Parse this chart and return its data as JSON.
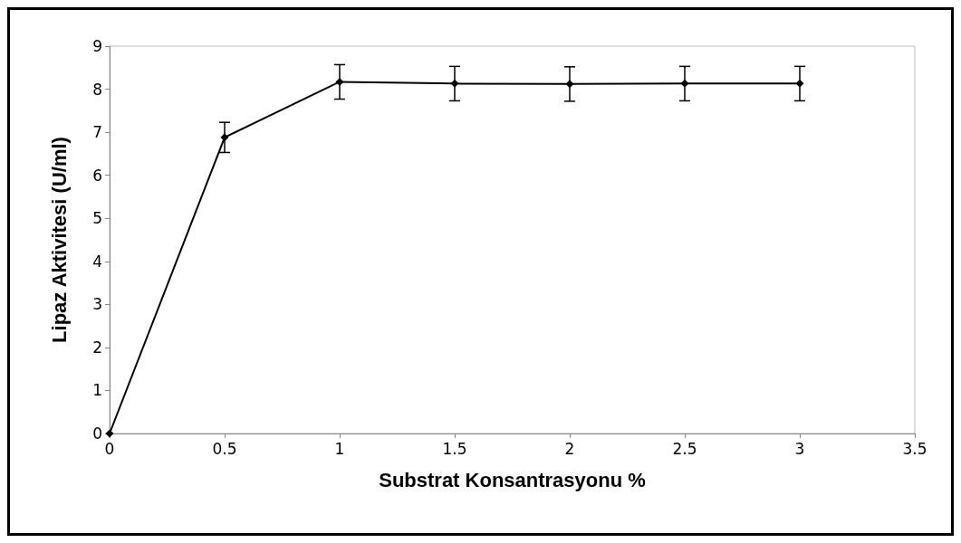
{
  "chart_data": {
    "type": "line",
    "xlabel": "Substrat Konsantrasyonu %",
    "ylabel": "Lipaz Aktivitesi (U/ml)",
    "x": [
      0,
      0.5,
      1,
      1.5,
      2,
      2.5,
      3
    ],
    "series": [
      {
        "color": "#000000",
        "values": [
          0,
          6.88,
          8.17,
          8.13,
          8.12,
          8.13,
          8.13
        ],
        "errors": [
          null,
          0.35,
          0.4,
          0.4,
          0.4,
          0.4,
          0.4
        ]
      }
    ],
    "xlim": [
      0,
      3.5
    ],
    "xticks": [
      0,
      0.5,
      1,
      1.5,
      2,
      2.5,
      3,
      3.5
    ],
    "ylim": [
      0,
      9
    ],
    "yticks": [
      0,
      1,
      2,
      3,
      4,
      5,
      6,
      7,
      8,
      9
    ],
    "grid": false,
    "marker": "diamond",
    "line_style": "solid"
  }
}
